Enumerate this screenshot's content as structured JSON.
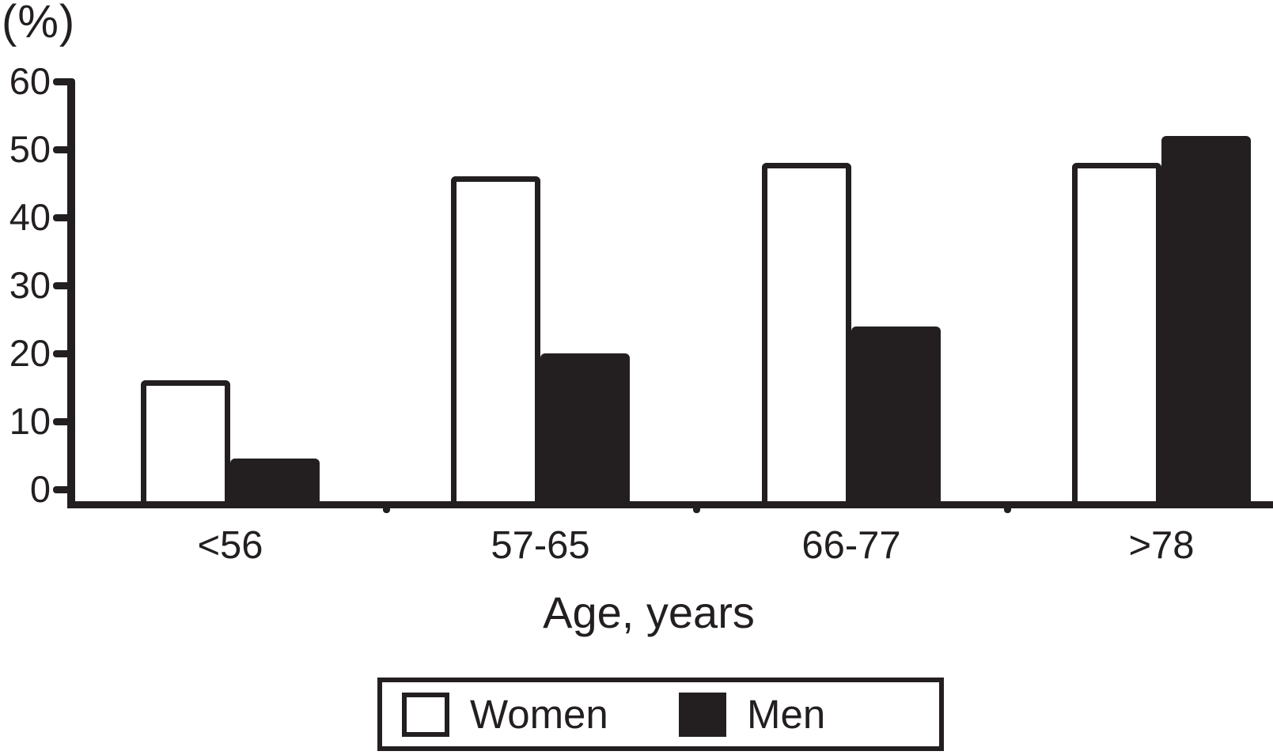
{
  "figure": {
    "background_color": "#ffffff",
    "ink_color": "#231f20"
  },
  "chart_data": {
    "type": "bar",
    "title": "",
    "ylabel": "(%)",
    "xlabel": "Age, years",
    "categories": [
      "<56",
      "57-65",
      "66-77",
      ">78"
    ],
    "series": [
      {
        "name": "Women",
        "swatch": "white",
        "values": [
          16,
          46,
          48,
          48
        ]
      },
      {
        "name": "Men",
        "swatch": "black",
        "values": [
          4.5,
          20,
          24,
          52
        ]
      }
    ],
    "ylim": [
      0,
      60
    ],
    "yticks": [
      0,
      10,
      20,
      30,
      40,
      50,
      60
    ],
    "grid": false,
    "legend_position": "bottom",
    "legend_entries": [
      "Women",
      "Men"
    ]
  }
}
